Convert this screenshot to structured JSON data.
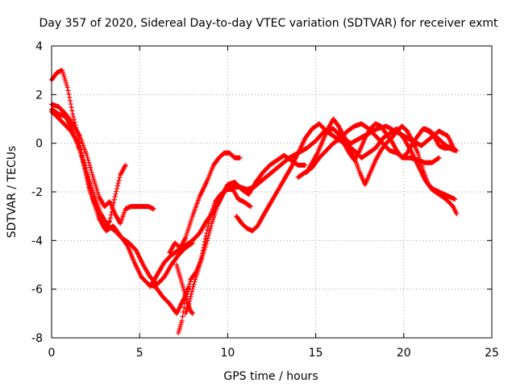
{
  "chart_data": {
    "type": "scatter",
    "title": "Day 357 of 2020, Sidereal Day-to-day VTEC variation (SDTVAR) for receiver exmt",
    "xlabel": "GPS time / hours",
    "ylabel": "SDTVAR / TECUs",
    "xlim": [
      0,
      25
    ],
    "ylim": [
      -8,
      4
    ],
    "xticks": [
      0,
      5,
      10,
      15,
      20,
      25
    ],
    "yticks": [
      -8,
      -6,
      -4,
      -2,
      0,
      2,
      4
    ],
    "grid": true,
    "marker": "plus",
    "color": "#ff0000",
    "series": [
      {
        "x": [
          0.0,
          0.3,
          0.6,
          0.9,
          1.2,
          1.5,
          1.8,
          2.1,
          2.4,
          2.7,
          3.0,
          3.3,
          3.6,
          3.9,
          4.2
        ],
        "y": [
          2.6,
          2.9,
          3.0,
          2.3,
          1.2,
          0.3,
          -0.8,
          -1.8,
          -2.4,
          -3.0,
          -3.5,
          -3.2,
          -2.2,
          -1.3,
          -0.9
        ]
      },
      {
        "x": [
          0.0,
          0.3,
          0.7,
          1.1,
          1.5,
          1.9,
          2.3,
          2.7,
          3.1,
          3.5,
          3.9,
          4.3,
          4.7,
          5.1,
          5.5,
          5.9,
          6.3,
          6.7,
          7.1,
          7.5,
          7.8
        ],
        "y": [
          1.3,
          1.1,
          0.8,
          0.5,
          0.0,
          -1.0,
          -2.2,
          -3.1,
          -3.6,
          -3.4,
          -3.8,
          -4.2,
          -4.9,
          -5.5,
          -5.8,
          -5.9,
          -6.3,
          -6.6,
          -7.0,
          -6.4,
          -5.9
        ]
      },
      {
        "x": [
          0.0,
          0.4,
          0.8,
          1.2,
          1.6,
          2.0,
          2.4,
          2.7,
          3.0,
          3.3,
          3.6,
          3.9,
          4.2,
          4.5,
          4.8,
          5.1,
          5.5,
          5.8
        ],
        "y": [
          1.6,
          1.5,
          1.2,
          0.8,
          0.3,
          -0.5,
          -1.5,
          -2.2,
          -2.6,
          -2.4,
          -2.9,
          -3.3,
          -2.7,
          -2.6,
          -2.6,
          -2.6,
          -2.6,
          -2.7
        ]
      },
      {
        "x": [
          0.0,
          0.4,
          0.8,
          1.2,
          1.6,
          2.0,
          2.4,
          2.8,
          3.2,
          3.6,
          4.0,
          4.4,
          4.8,
          5.2,
          5.6,
          6.0,
          6.4,
          6.8,
          7.2,
          7.6,
          8.0
        ],
        "y": [
          1.4,
          1.2,
          1.1,
          0.5,
          -0.3,
          -1.2,
          -2.1,
          -2.9,
          -3.4,
          -3.6,
          -3.9,
          -4.1,
          -4.4,
          -5.0,
          -5.5,
          -5.8,
          -5.5,
          -5.0,
          -4.6,
          -4.3,
          -4.1
        ]
      },
      {
        "x": [
          5.6,
          6.0,
          6.4,
          6.8,
          7.2,
          7.6,
          8.0,
          8.4,
          8.8,
          9.2,
          9.6,
          10.0,
          10.4,
          10.8,
          11.2,
          11.6,
          12.0,
          12.4,
          12.8,
          13.2,
          13.6,
          14.0,
          14.4
        ],
        "y": [
          -5.9,
          -5.4,
          -4.9,
          -4.6,
          -4.4,
          -4.2,
          -4.0,
          -3.7,
          -3.2,
          -2.8,
          -2.3,
          -1.7,
          -1.6,
          -1.9,
          -2.1,
          -1.6,
          -1.2,
          -0.9,
          -0.7,
          -0.5,
          -0.7,
          -0.9,
          -0.9
        ]
      },
      {
        "x": [
          6.7,
          7.0,
          7.3,
          7.6,
          8.0,
          8.4,
          8.8,
          9.2,
          9.5,
          9.8,
          10.1,
          10.4,
          10.7
        ],
        "y": [
          -4.5,
          -4.1,
          -4.3,
          -3.9,
          -3.0,
          -2.2,
          -1.6,
          -0.9,
          -0.6,
          -0.4,
          -0.4,
          -0.6,
          -0.6
        ]
      },
      {
        "x": [
          7.2,
          7.4,
          7.6,
          7.9,
          8.2,
          8.5,
          8.8,
          9.1,
          9.4,
          9.7,
          10.0,
          10.3,
          10.7,
          11.1,
          11.5,
          12.0,
          12.5,
          13.0,
          13.5,
          14.0,
          14.5,
          15.0,
          15.5,
          16.0,
          16.5,
          17.0,
          17.5,
          18.0,
          18.5,
          19.0,
          19.5,
          20.0,
          20.5,
          21.0,
          21.5,
          22.0,
          22.5,
          22.9
        ],
        "y": [
          -7.8,
          -7.3,
          -6.4,
          -5.6,
          -5.3,
          -4.8,
          -4.1,
          -3.3,
          -2.6,
          -2.1,
          -1.7,
          -1.8,
          -1.8,
          -1.9,
          -1.8,
          -1.5,
          -1.2,
          -0.9,
          -0.6,
          -0.4,
          -0.2,
          0.1,
          0.5,
          0.6,
          0.2,
          0.0,
          0.2,
          0.4,
          0.6,
          0.7,
          0.5,
          0.3,
          0.1,
          -0.1,
          0.2,
          0.5,
          0.3,
          -0.3
        ]
      },
      {
        "x": [
          7.6,
          7.8,
          8.0,
          8.2,
          8.4,
          8.6,
          8.8,
          9.0,
          9.3,
          9.6,
          10.0,
          10.3,
          10.6,
          10.9,
          11.3
        ],
        "y": [
          -7.0,
          -6.6,
          -6.0,
          -5.5,
          -5.0,
          -4.4,
          -3.7,
          -3.0,
          -2.4,
          -2.1,
          -1.9,
          -1.9,
          -2.3,
          -2.4,
          -2.6
        ]
      },
      {
        "x": [
          7.1,
          7.3,
          7.5,
          7.7,
          7.9,
          8.0
        ],
        "y": [
          -5.0,
          -5.5,
          -6.0,
          -6.5,
          -6.9,
          -7.0
        ]
      },
      {
        "x": [
          10.5,
          10.8,
          11.1,
          11.4,
          11.7,
          12.0,
          12.4,
          12.8,
          13.2,
          13.6,
          14.0,
          14.4,
          14.8,
          15.2,
          15.6,
          16.0,
          16.4,
          16.8,
          17.2,
          17.6,
          18.0,
          18.4,
          18.8,
          19.2,
          19.6,
          20.0,
          20.4,
          20.8,
          21.2,
          21.6,
          22.0,
          22.4,
          22.8,
          23.0
        ],
        "y": [
          -3.0,
          -3.3,
          -3.5,
          -3.6,
          -3.4,
          -3.0,
          -2.5,
          -2.0,
          -1.5,
          -1.0,
          -0.4,
          0.2,
          0.6,
          0.8,
          0.5,
          0.3,
          0.1,
          -0.1,
          -0.3,
          -0.6,
          -0.4,
          -0.2,
          0.2,
          0.4,
          0.6,
          0.2,
          -0.3,
          -0.9,
          -1.5,
          -1.9,
          -2.1,
          -2.3,
          -2.6,
          -2.9
        ]
      },
      {
        "x": [
          14.5,
          14.8,
          15.1,
          15.4,
          15.7,
          16.0,
          16.3,
          16.6,
          16.9,
          17.2,
          17.5,
          17.8,
          18.1,
          18.4,
          18.7,
          19.0,
          19.3,
          19.6,
          19.9,
          20.2,
          20.5,
          20.8,
          21.1,
          21.4,
          21.7,
          22.0,
          22.3,
          22.6,
          22.9
        ],
        "y": [
          -1.2,
          -0.8,
          -0.4,
          0.1,
          0.6,
          1.0,
          0.7,
          0.3,
          -0.1,
          -0.6,
          -1.2,
          -1.7,
          -1.2,
          -0.7,
          -0.3,
          0.0,
          0.2,
          0.5,
          0.7,
          0.5,
          0.1,
          -0.4,
          -1.1,
          -1.7,
          -1.9,
          -2.0,
          -2.1,
          -2.2,
          -2.3
        ]
      },
      {
        "x": [
          16.3,
          16.6,
          16.9,
          17.2,
          17.5,
          17.8,
          18.1,
          18.4,
          18.7,
          19.0,
          19.3,
          19.6,
          19.9,
          20.2,
          20.5,
          20.8,
          21.1,
          21.4,
          21.7,
          22.0,
          22.3,
          22.6,
          22.9
        ],
        "y": [
          0.5,
          0.0,
          -0.4,
          -0.7,
          -0.3,
          0.2,
          0.6,
          0.8,
          0.7,
          0.4,
          0.1,
          -0.3,
          -0.6,
          -0.4,
          0.0,
          0.3,
          0.6,
          0.5,
          0.3,
          -0.1,
          -0.2,
          -0.2,
          -0.3
        ]
      },
      {
        "x": [
          14.0,
          14.4,
          14.8,
          15.2,
          15.6,
          16.0,
          16.4,
          16.8,
          17.2,
          17.6,
          18.0,
          18.4,
          18.8,
          19.2,
          19.6,
          20.0,
          20.4,
          20.8,
          21.2,
          21.6,
          22.0
        ],
        "y": [
          -1.4,
          -1.2,
          -1.0,
          -0.6,
          -0.3,
          0.0,
          0.2,
          0.5,
          0.7,
          0.8,
          0.6,
          0.3,
          0.0,
          -0.3,
          -0.4,
          -0.6,
          -0.6,
          -0.7,
          -0.8,
          -0.8,
          -0.6
        ]
      },
      {
        "x": [
          21.2,
          21.5,
          21.8,
          22.1,
          22.4,
          22.7,
          23.0
        ],
        "y": [
          0.6,
          0.5,
          0.3,
          0.1,
          -0.1,
          -0.2,
          -0.3
        ]
      }
    ]
  }
}
